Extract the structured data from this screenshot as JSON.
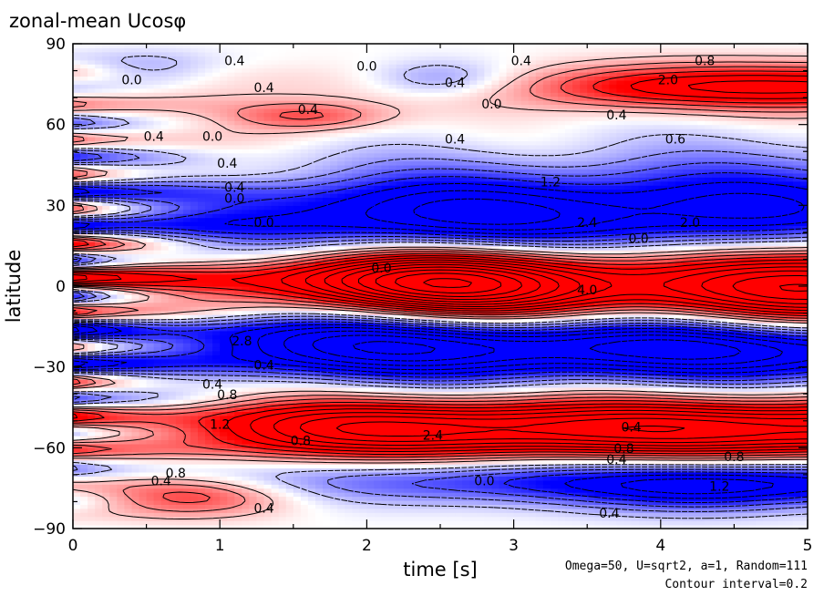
{
  "chart_data": {
    "type": "heatmap",
    "title": "zonal-mean Ucosφ",
    "xlabel": "time [s]",
    "ylabel": "latitude",
    "xlim": [
      0,
      5
    ],
    "ylim": [
      -90,
      90
    ],
    "x_ticks": [
      "0",
      "1",
      "2",
      "3",
      "4",
      "5"
    ],
    "y_ticks": [
      "90",
      "60",
      "30",
      "0",
      "−30",
      "−60",
      "−90"
    ],
    "annotations": [
      "Omega=50, U=sqrt2, a=1, Random=111",
      "Contour interval=0.2"
    ],
    "contour_interval": 0.2,
    "colors": {
      "positive": "#ff0000",
      "negative": "#0000ff",
      "zero": "#ffffff"
    },
    "contour_labels": [
      {
        "t": 1.1,
        "lat": 82,
        "text": "0.4"
      },
      {
        "t": 2.0,
        "lat": 80,
        "text": "0.0"
      },
      {
        "t": 2.6,
        "lat": 74,
        "text": "0.4"
      },
      {
        "t": 3.05,
        "lat": 82,
        "text": "0.4"
      },
      {
        "t": 4.3,
        "lat": 82,
        "text": "0.8"
      },
      {
        "t": 4.05,
        "lat": 75,
        "text": "2.0"
      },
      {
        "t": 0.4,
        "lat": 75,
        "text": "0.0"
      },
      {
        "t": 1.3,
        "lat": 72,
        "text": "0.4"
      },
      {
        "t": 2.85,
        "lat": 66,
        "text": "0.0"
      },
      {
        "t": 1.6,
        "lat": 64,
        "text": "0.4"
      },
      {
        "t": 3.7,
        "lat": 62,
        "text": "0.4"
      },
      {
        "t": 0.55,
        "lat": 54,
        "text": "0.4"
      },
      {
        "t": 0.95,
        "lat": 54,
        "text": "0.0"
      },
      {
        "t": 2.6,
        "lat": 53,
        "text": "0.4"
      },
      {
        "t": 4.1,
        "lat": 53,
        "text": "0.6"
      },
      {
        "t": 1.05,
        "lat": 44,
        "text": "0.4"
      },
      {
        "t": 1.1,
        "lat": 35,
        "text": "0.4"
      },
      {
        "t": 1.1,
        "lat": 31,
        "text": "0.0"
      },
      {
        "t": 3.25,
        "lat": 37,
        "text": "1.2"
      },
      {
        "t": 1.3,
        "lat": 22,
        "text": "0.0"
      },
      {
        "t": 3.5,
        "lat": 22,
        "text": "2.4"
      },
      {
        "t": 4.2,
        "lat": 22,
        "text": "2.0"
      },
      {
        "t": 3.85,
        "lat": 16,
        "text": "0.0"
      },
      {
        "t": 2.1,
        "lat": 5,
        "text": "0.0"
      },
      {
        "t": 3.5,
        "lat": -3,
        "text": "4.0"
      },
      {
        "t": 1.15,
        "lat": -22,
        "text": "2.8"
      },
      {
        "t": 1.3,
        "lat": -31,
        "text": "0.4"
      },
      {
        "t": 0.95,
        "lat": -38,
        "text": "0.4"
      },
      {
        "t": 1.05,
        "lat": -42,
        "text": "0.8"
      },
      {
        "t": 1.0,
        "lat": -53,
        "text": "1.2"
      },
      {
        "t": 2.45,
        "lat": -57,
        "text": "2.4"
      },
      {
        "t": 3.8,
        "lat": -54,
        "text": "0.4"
      },
      {
        "t": 1.55,
        "lat": -59,
        "text": "0.8"
      },
      {
        "t": 3.75,
        "lat": -62,
        "text": "0.8"
      },
      {
        "t": 3.7,
        "lat": -66,
        "text": "0.4"
      },
      {
        "t": 4.5,
        "lat": -65,
        "text": "0.8"
      },
      {
        "t": 0.7,
        "lat": -71,
        "text": "0.8"
      },
      {
        "t": 0.6,
        "lat": -74,
        "text": "0.4"
      },
      {
        "t": 2.8,
        "lat": -74,
        "text": "0.0"
      },
      {
        "t": 4.4,
        "lat": -76,
        "text": "1.2"
      },
      {
        "t": 1.3,
        "lat": -84,
        "text": "0.4"
      },
      {
        "t": 3.65,
        "lat": -86,
        "text": "0.4"
      }
    ]
  }
}
